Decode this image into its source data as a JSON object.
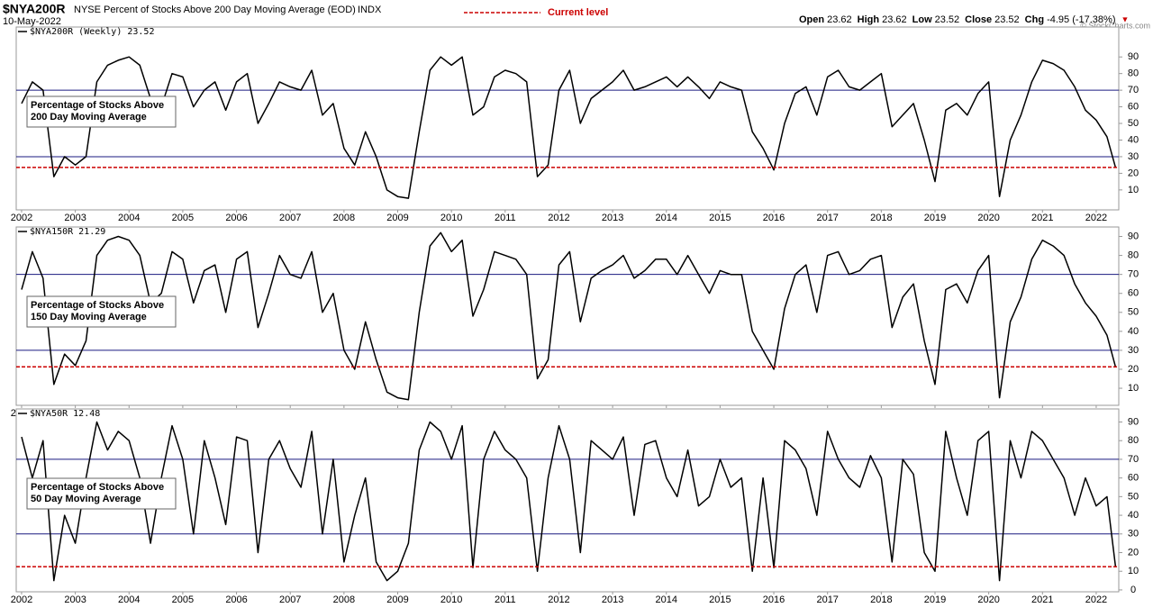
{
  "header": {
    "symbol": "$NYA200R",
    "description": "NYSE Percent of Stocks Above 200 Day Moving Average (EOD)",
    "exchange": "INDX",
    "date": "10-May-2022",
    "legend": "Current level",
    "quote": [
      {
        "label": "Open",
        "value": "23.62"
      },
      {
        "label": "High",
        "value": "23.62"
      },
      {
        "label": "Low",
        "value": "23.52"
      },
      {
        "label": "Close",
        "value": "23.52"
      },
      {
        "label": "Chg",
        "value": "-4.95 (-17.38%)"
      }
    ],
    "copyright": "© StockCharts.com"
  },
  "chart_data": [
    {
      "type": "line",
      "title": "$NYA200R (Weekly) 23.52",
      "annotation": [
        "Percentage of Stocks Above",
        "200 Day Moving Average"
      ],
      "color": "#000000",
      "hlines": [
        30,
        70
      ],
      "current_level": 23.52,
      "x": [
        2002,
        2002.2,
        2002.4,
        2002.6,
        2002.8,
        2003,
        2003.2,
        2003.4,
        2003.6,
        2003.8,
        2004,
        2004.2,
        2004.4,
        2004.6,
        2004.8,
        2005,
        2005.2,
        2005.4,
        2005.6,
        2005.8,
        2006,
        2006.2,
        2006.4,
        2006.6,
        2006.8,
        2007,
        2007.2,
        2007.4,
        2007.6,
        2007.8,
        2008,
        2008.2,
        2008.4,
        2008.6,
        2008.8,
        2009,
        2009.2,
        2009.4,
        2009.6,
        2009.8,
        2010,
        2010.2,
        2010.4,
        2010.6,
        2010.8,
        2011,
        2011.2,
        2011.4,
        2011.6,
        2011.8,
        2012,
        2012.2,
        2012.4,
        2012.6,
        2012.8,
        2013,
        2013.2,
        2013.4,
        2013.6,
        2013.8,
        2014,
        2014.2,
        2014.4,
        2014.6,
        2014.8,
        2015,
        2015.2,
        2015.4,
        2015.6,
        2015.8,
        2016,
        2016.2,
        2016.4,
        2016.6,
        2016.8,
        2017,
        2017.2,
        2017.4,
        2017.6,
        2017.8,
        2018,
        2018.2,
        2018.4,
        2018.6,
        2018.8,
        2019,
        2019.2,
        2019.4,
        2019.6,
        2019.8,
        2020,
        2020.2,
        2020.4,
        2020.6,
        2020.8,
        2021,
        2021.2,
        2021.4,
        2021.6,
        2021.8,
        2022,
        2022.2,
        2022.36
      ],
      "values": [
        62,
        75,
        70,
        18,
        30,
        25,
        30,
        75,
        85,
        88,
        90,
        85,
        65,
        60,
        80,
        78,
        60,
        70,
        75,
        58,
        75,
        80,
        50,
        62,
        75,
        72,
        70,
        82,
        55,
        62,
        35,
        25,
        45,
        30,
        10,
        6,
        5,
        45,
        82,
        90,
        85,
        90,
        55,
        60,
        78,
        82,
        80,
        75,
        18,
        25,
        70,
        82,
        50,
        65,
        70,
        75,
        82,
        70,
        72,
        75,
        78,
        72,
        78,
        72,
        65,
        75,
        72,
        70,
        45,
        35,
        22,
        50,
        68,
        72,
        55,
        78,
        82,
        72,
        70,
        75,
        80,
        48,
        55,
        62,
        40,
        15,
        58,
        62,
        55,
        68,
        75,
        6,
        40,
        55,
        75,
        88,
        86,
        82,
        72,
        58,
        52,
        42,
        23.52
      ],
      "xlim": [
        2001.9,
        2022.42
      ],
      "xticks": [
        2002,
        2003,
        2004,
        2005,
        2006,
        2007,
        2008,
        2009,
        2010,
        2011,
        2012,
        2013,
        2014,
        2015,
        2016,
        2017,
        2018,
        2019,
        2020,
        2021,
        2022
      ],
      "ylim": [
        -2,
        108
      ],
      "yticks": [
        10,
        20,
        30,
        40,
        50,
        60,
        70,
        80,
        90
      ]
    },
    {
      "type": "line",
      "title": "$NYA150R 21.29",
      "annotation": [
        "Percentage of Stocks Above",
        "150 Day Moving Average"
      ],
      "color": "#000000",
      "hlines": [
        30,
        70
      ],
      "current_level": 21.29,
      "x": [
        2002,
        2002.2,
        2002.4,
        2002.6,
        2002.8,
        2003,
        2003.2,
        2003.4,
        2003.6,
        2003.8,
        2004,
        2004.2,
        2004.4,
        2004.6,
        2004.8,
        2005,
        2005.2,
        2005.4,
        2005.6,
        2005.8,
        2006,
        2006.2,
        2006.4,
        2006.6,
        2006.8,
        2007,
        2007.2,
        2007.4,
        2007.6,
        2007.8,
        2008,
        2008.2,
        2008.4,
        2008.6,
        2008.8,
        2009,
        2009.2,
        2009.4,
        2009.6,
        2009.8,
        2010,
        2010.2,
        2010.4,
        2010.6,
        2010.8,
        2011,
        2011.2,
        2011.4,
        2011.6,
        2011.8,
        2012,
        2012.2,
        2012.4,
        2012.6,
        2012.8,
        2013,
        2013.2,
        2013.4,
        2013.6,
        2013.8,
        2014,
        2014.2,
        2014.4,
        2014.6,
        2014.8,
        2015,
        2015.2,
        2015.4,
        2015.6,
        2015.8,
        2016,
        2016.2,
        2016.4,
        2016.6,
        2016.8,
        2017,
        2017.2,
        2017.4,
        2017.6,
        2017.8,
        2018,
        2018.2,
        2018.4,
        2018.6,
        2018.8,
        2019,
        2019.2,
        2019.4,
        2019.6,
        2019.8,
        2020,
        2020.2,
        2020.4,
        2020.6,
        2020.8,
        2021,
        2021.2,
        2021.4,
        2021.6,
        2021.8,
        2022,
        2022.2,
        2022.36
      ],
      "values": [
        62,
        82,
        68,
        12,
        28,
        22,
        35,
        80,
        88,
        90,
        88,
        80,
        55,
        60,
        82,
        78,
        55,
        72,
        75,
        50,
        78,
        82,
        42,
        60,
        80,
        70,
        68,
        82,
        50,
        60,
        30,
        20,
        45,
        25,
        8,
        5,
        4,
        50,
        85,
        92,
        82,
        88,
        48,
        62,
        82,
        80,
        78,
        70,
        15,
        25,
        75,
        82,
        45,
        68,
        72,
        75,
        80,
        68,
        72,
        78,
        78,
        70,
        80,
        70,
        60,
        72,
        70,
        70,
        40,
        30,
        20,
        52,
        70,
        75,
        50,
        80,
        82,
        70,
        72,
        78,
        80,
        42,
        58,
        65,
        35,
        12,
        62,
        65,
        55,
        72,
        80,
        5,
        45,
        58,
        78,
        88,
        85,
        80,
        65,
        55,
        48,
        38,
        21.29
      ],
      "xlim": [
        2001.9,
        2022.42
      ],
      "xticks": [
        2002,
        2003,
        2004,
        2005,
        2006,
        2007,
        2008,
        2009,
        2010,
        2011,
        2012,
        2013,
        2014,
        2015,
        2016,
        2017,
        2018,
        2019,
        2020,
        2021,
        2022
      ],
      "ylim": [
        1,
        95
      ],
      "yticks": [
        10,
        20,
        30,
        40,
        50,
        60,
        70,
        80,
        90
      ]
    },
    {
      "type": "line",
      "title": "$NYA50R 12.48",
      "annotation": [
        "Percentage of Stocks Above",
        "50 Day Moving Average"
      ],
      "color": "#000000",
      "hlines": [
        30,
        70
      ],
      "current_level": 12.48,
      "x": [
        2002,
        2002.2,
        2002.4,
        2002.6,
        2002.8,
        2003,
        2003.2,
        2003.4,
        2003.6,
        2003.8,
        2004,
        2004.2,
        2004.4,
        2004.6,
        2004.8,
        2005,
        2005.2,
        2005.4,
        2005.6,
        2005.8,
        2006,
        2006.2,
        2006.4,
        2006.6,
        2006.8,
        2007,
        2007.2,
        2007.4,
        2007.6,
        2007.8,
        2008,
        2008.2,
        2008.4,
        2008.6,
        2008.8,
        2009,
        2009.2,
        2009.4,
        2009.6,
        2009.8,
        2010,
        2010.2,
        2010.4,
        2010.6,
        2010.8,
        2011,
        2011.2,
        2011.4,
        2011.6,
        2011.8,
        2012,
        2012.2,
        2012.4,
        2012.6,
        2012.8,
        2013,
        2013.2,
        2013.4,
        2013.6,
        2013.8,
        2014,
        2014.2,
        2014.4,
        2014.6,
        2014.8,
        2015,
        2015.2,
        2015.4,
        2015.6,
        2015.8,
        2016,
        2016.2,
        2016.4,
        2016.6,
        2016.8,
        2017,
        2017.2,
        2017.4,
        2017.6,
        2017.8,
        2018,
        2018.2,
        2018.4,
        2018.6,
        2018.8,
        2019,
        2019.2,
        2019.4,
        2019.6,
        2019.8,
        2020,
        2020.2,
        2020.4,
        2020.6,
        2020.8,
        2021,
        2021.2,
        2021.4,
        2021.6,
        2021.8,
        2022,
        2022.2,
        2022.36
      ],
      "values": [
        82,
        60,
        80,
        5,
        40,
        25,
        60,
        90,
        75,
        85,
        80,
        60,
        25,
        60,
        88,
        70,
        30,
        80,
        60,
        35,
        82,
        80,
        20,
        70,
        80,
        65,
        55,
        85,
        30,
        70,
        15,
        40,
        60,
        15,
        5,
        10,
        25,
        75,
        90,
        85,
        70,
        88,
        12,
        70,
        85,
        75,
        70,
        60,
        10,
        60,
        88,
        70,
        20,
        80,
        75,
        70,
        82,
        40,
        78,
        80,
        60,
        50,
        75,
        45,
        50,
        70,
        55,
        60,
        10,
        60,
        12,
        80,
        75,
        65,
        40,
        85,
        70,
        60,
        55,
        72,
        60,
        15,
        70,
        62,
        20,
        10,
        85,
        60,
        40,
        80,
        85,
        5,
        80,
        60,
        85,
        80,
        70,
        60,
        40,
        60,
        45,
        50,
        12.48
      ],
      "xlim": [
        2001.9,
        2022.42
      ],
      "xticks": [
        2002,
        2003,
        2004,
        2005,
        2006,
        2007,
        2008,
        2009,
        2010,
        2011,
        2012,
        2013,
        2014,
        2015,
        2016,
        2017,
        2018,
        2019,
        2020,
        2021,
        2022
      ],
      "ylim": [
        -1,
        97
      ],
      "yticks": [
        0,
        10,
        20,
        30,
        40,
        50,
        60,
        70,
        80,
        90
      ]
    }
  ]
}
